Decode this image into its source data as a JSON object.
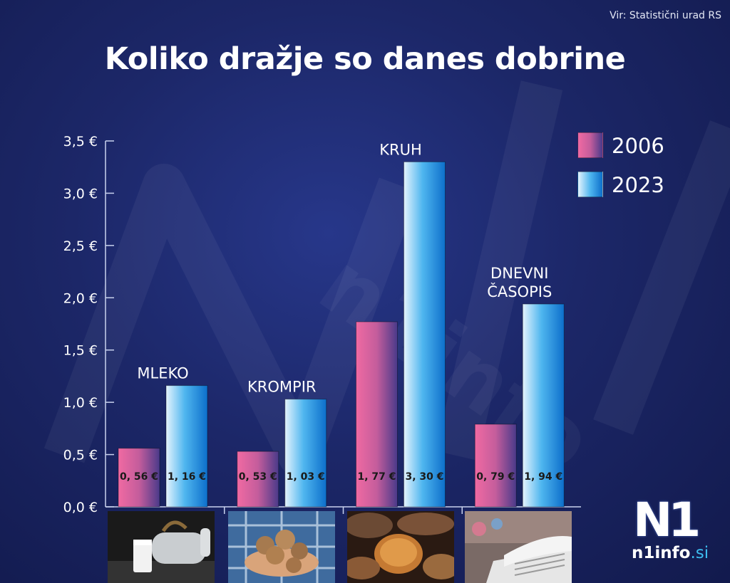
{
  "source": "Vir: Statistični urad RS",
  "title": "Koliko dražje so danes dobrine",
  "legend": [
    {
      "label": "2006",
      "color": "#e0578f"
    },
    {
      "label": "2023",
      "color": "#1c8fe0"
    }
  ],
  "chart_data": {
    "type": "bar",
    "title": "Koliko dražje so danes dobrine",
    "categories": [
      "MLEKO",
      "KROMPIR",
      "KRUH",
      "DNEVNI ČASOPIS"
    ],
    "category_lines": [
      [
        "MLEKO"
      ],
      [
        "KROMPIR"
      ],
      [
        "KRUH"
      ],
      [
        "DNEVNI",
        "ČASOPIS"
      ]
    ],
    "series": [
      {
        "name": "2006",
        "values": [
          0.56,
          0.53,
          1.77,
          0.79
        ],
        "labels": [
          "0, 56 €",
          "0, 53 €",
          "1, 77 €",
          "0, 79 €"
        ],
        "color": "#e0578f"
      },
      {
        "name": "2023",
        "values": [
          1.16,
          1.03,
          3.3,
          1.94
        ],
        "labels": [
          "1, 16 €",
          "1, 03 €",
          "3, 30 €",
          "1, 94 €"
        ],
        "color": "#1c8fe0"
      }
    ],
    "ylim": [
      0,
      3.5
    ],
    "yticks": [
      "0,0 €",
      "0,5 €",
      "1,0 €",
      "1,5 €",
      "2,0 €",
      "2,5 €",
      "3,0 €",
      "3,5 €"
    ],
    "xlabel": "",
    "ylabel": "",
    "grid": false,
    "legend_position": "top-right"
  },
  "images": [
    "milk-icon",
    "potato-icon",
    "bread-icon",
    "newspaper-icon"
  ],
  "logo": {
    "mark": "N1",
    "name": "n1info",
    "suffix": ".si"
  }
}
